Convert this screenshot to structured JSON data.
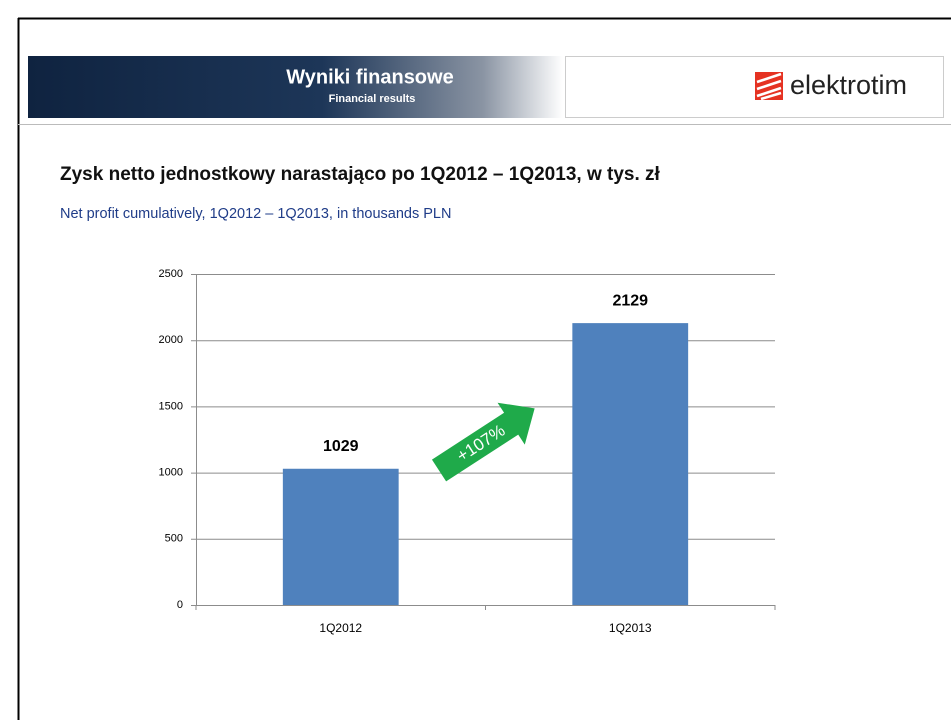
{
  "header": {
    "title": "Wyniki finansowe",
    "subtitle": "Financial results",
    "logo": "elektrotim"
  },
  "chart_data": {
    "type": "bar",
    "title": "Zysk netto jednostkowy narastająco po 1Q2012 – 1Q2013, w tys. zł",
    "subtitle": "Net profit cumulatively, 1Q2012 – 1Q2013, in thousands PLN",
    "annotation": "+107%",
    "categories": [
      "1Q2012",
      "1Q2013"
    ],
    "values": [
      1029,
      2129
    ],
    "color": "#4f81bd",
    "ylim": [
      0,
      2500
    ],
    "yticks": [
      0,
      500,
      1000,
      1500,
      2000,
      2500
    ],
    "grid": true
  }
}
